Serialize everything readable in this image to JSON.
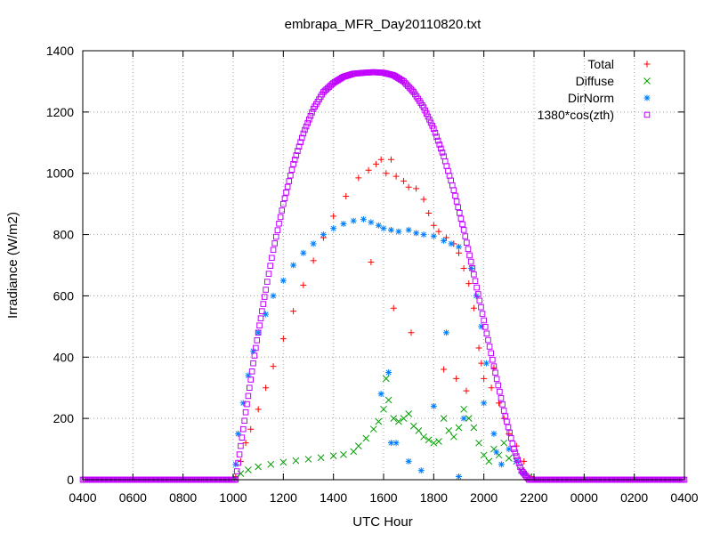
{
  "chart_data": {
    "type": "scatter",
    "title": "embrapa_MFR_Day20110820.txt",
    "xlabel": "UTC Hour",
    "ylabel": "Irradiance (W/m2)",
    "xlim": [
      4,
      28
    ],
    "ylim": [
      0,
      1400
    ],
    "x_ticks": [
      {
        "value": 4,
        "label": "0400"
      },
      {
        "value": 6,
        "label": "0600"
      },
      {
        "value": 8,
        "label": "0800"
      },
      {
        "value": 10,
        "label": "1000"
      },
      {
        "value": 12,
        "label": "1200"
      },
      {
        "value": 14,
        "label": "1400"
      },
      {
        "value": 16,
        "label": "1600"
      },
      {
        "value": 18,
        "label": "1800"
      },
      {
        "value": 20,
        "label": "2000"
      },
      {
        "value": 22,
        "label": "2200"
      },
      {
        "value": 24,
        "label": "0000"
      },
      {
        "value": 26,
        "label": "0200"
      },
      {
        "value": 28,
        "label": "0400"
      }
    ],
    "y_ticks": [
      0,
      200,
      400,
      600,
      800,
      1000,
      1200,
      1400
    ],
    "grid": true,
    "legend_position": "top-right",
    "series": [
      {
        "name": "Total",
        "color": "#ff0000",
        "marker": "plus",
        "points": [
          [
            10.1,
            10
          ],
          [
            10.3,
            60
          ],
          [
            10.5,
            120
          ],
          [
            10.7,
            165
          ],
          [
            11,
            230
          ],
          [
            11.3,
            300
          ],
          [
            11.6,
            370
          ],
          [
            12,
            460
          ],
          [
            12.4,
            550
          ],
          [
            12.8,
            635
          ],
          [
            13.2,
            715
          ],
          [
            13.6,
            790
          ],
          [
            14,
            860
          ],
          [
            14.5,
            925
          ],
          [
            15,
            985
          ],
          [
            15.4,
            1010
          ],
          [
            15.7,
            1030
          ],
          [
            15.9,
            1045
          ],
          [
            16.1,
            1000
          ],
          [
            16.3,
            1045
          ],
          [
            16.5,
            990
          ],
          [
            16.8,
            975
          ],
          [
            17,
            955
          ],
          [
            17.3,
            950
          ],
          [
            17.6,
            915
          ],
          [
            17.8,
            870
          ],
          [
            18,
            830
          ],
          [
            18.2,
            810
          ],
          [
            18.5,
            790
          ],
          [
            18.8,
            770
          ],
          [
            19,
            740
          ],
          [
            19.2,
            690
          ],
          [
            19.4,
            640
          ],
          [
            19.6,
            560
          ],
          [
            19.8,
            430
          ],
          [
            19.9,
            380
          ],
          [
            20,
            330
          ],
          [
            20.3,
            300
          ],
          [
            20.6,
            250
          ],
          [
            20.8,
            200
          ],
          [
            21,
            150
          ],
          [
            21.3,
            110
          ],
          [
            21.6,
            60
          ],
          [
            21.9,
            10
          ],
          [
            15.5,
            710
          ],
          [
            16.4,
            560
          ],
          [
            17.1,
            480
          ],
          [
            18.4,
            360
          ],
          [
            18.9,
            330
          ],
          [
            19.3,
            290
          ],
          [
            20.4,
            365
          ]
        ]
      },
      {
        "name": "Diffuse",
        "color": "#00a000",
        "marker": "cross",
        "points": [
          [
            10.1,
            5
          ],
          [
            10.3,
            20
          ],
          [
            10.6,
            32
          ],
          [
            11,
            42
          ],
          [
            11.5,
            50
          ],
          [
            12,
            57
          ],
          [
            12.5,
            62
          ],
          [
            13,
            67
          ],
          [
            13.5,
            72
          ],
          [
            14,
            78
          ],
          [
            14.4,
            82
          ],
          [
            14.8,
            92
          ],
          [
            15,
            110
          ],
          [
            15.3,
            135
          ],
          [
            15.6,
            165
          ],
          [
            15.8,
            190
          ],
          [
            16,
            230
          ],
          [
            16.1,
            330
          ],
          [
            16.2,
            260
          ],
          [
            16.4,
            200
          ],
          [
            16.6,
            190
          ],
          [
            16.8,
            200
          ],
          [
            17,
            215
          ],
          [
            17.2,
            175
          ],
          [
            17.4,
            160
          ],
          [
            17.6,
            140
          ],
          [
            17.8,
            130
          ],
          [
            18,
            120
          ],
          [
            18.2,
            125
          ],
          [
            18.4,
            200
          ],
          [
            18.6,
            160
          ],
          [
            18.8,
            140
          ],
          [
            19,
            170
          ],
          [
            19.2,
            230
          ],
          [
            19.4,
            200
          ],
          [
            19.6,
            170
          ],
          [
            19.8,
            120
          ],
          [
            20,
            80
          ],
          [
            20.2,
            60
          ],
          [
            20.4,
            100
          ],
          [
            20.6,
            80
          ],
          [
            20.8,
            120
          ],
          [
            21,
            70
          ],
          [
            21.3,
            60
          ],
          [
            21.5,
            30
          ],
          [
            21.8,
            10
          ]
        ]
      },
      {
        "name": "DirNorm",
        "color": "#0080ff",
        "marker": "star",
        "points": [
          [
            10.1,
            50
          ],
          [
            10.2,
            150
          ],
          [
            10.4,
            250
          ],
          [
            10.6,
            340
          ],
          [
            10.8,
            420
          ],
          [
            11,
            480
          ],
          [
            11.3,
            540
          ],
          [
            11.6,
            600
          ],
          [
            12,
            650
          ],
          [
            12.4,
            700
          ],
          [
            12.8,
            740
          ],
          [
            13.2,
            770
          ],
          [
            13.6,
            800
          ],
          [
            14,
            820
          ],
          [
            14.4,
            835
          ],
          [
            14.8,
            845
          ],
          [
            15.2,
            850
          ],
          [
            15.5,
            840
          ],
          [
            15.8,
            830
          ],
          [
            16,
            820
          ],
          [
            16.3,
            815
          ],
          [
            16.6,
            810
          ],
          [
            17,
            815
          ],
          [
            17.3,
            805
          ],
          [
            17.6,
            800
          ],
          [
            18,
            795
          ],
          [
            18.4,
            780
          ],
          [
            18.7,
            770
          ],
          [
            19,
            760
          ],
          [
            19.5,
            690
          ],
          [
            19.7,
            600
          ],
          [
            19.9,
            500
          ],
          [
            20.1,
            380
          ],
          [
            16.2,
            350
          ],
          [
            16.5,
            120
          ],
          [
            17,
            60
          ],
          [
            18,
            240
          ],
          [
            19,
            10
          ],
          [
            19.2,
            200
          ],
          [
            20,
            250
          ],
          [
            20.4,
            150
          ],
          [
            20.7,
            50
          ],
          [
            21,
            100
          ],
          [
            21.3,
            60
          ],
          [
            21.6,
            20
          ],
          [
            15.9,
            280
          ],
          [
            16.3,
            120
          ],
          [
            17.5,
            30
          ],
          [
            18.5,
            480
          ],
          [
            20.5,
            90
          ]
        ]
      },
      {
        "name": "1380*cos(zth)",
        "color": "#c000ff",
        "marker": "square",
        "points": [
          [
            4,
            0
          ],
          [
            6,
            0
          ],
          [
            8,
            0
          ],
          [
            9.9,
            0
          ],
          [
            10.1,
            0
          ],
          [
            10.3,
            110
          ],
          [
            10.5,
            220
          ],
          [
            10.8,
            380
          ],
          [
            11,
            480
          ],
          [
            11.3,
            620
          ],
          [
            11.6,
            750
          ],
          [
            12,
            900
          ],
          [
            12.4,
            1030
          ],
          [
            12.8,
            1130
          ],
          [
            13.2,
            1210
          ],
          [
            13.6,
            1265
          ],
          [
            14,
            1295
          ],
          [
            14.4,
            1315
          ],
          [
            14.8,
            1325
          ],
          [
            15.2,
            1328
          ],
          [
            15.6,
            1330
          ],
          [
            16,
            1328
          ],
          [
            16.4,
            1320
          ],
          [
            16.8,
            1300
          ],
          [
            17.2,
            1265
          ],
          [
            17.6,
            1215
          ],
          [
            18,
            1145
          ],
          [
            18.4,
            1055
          ],
          [
            18.8,
            945
          ],
          [
            19.2,
            815
          ],
          [
            19.6,
            670
          ],
          [
            20,
            520
          ],
          [
            20.4,
            370
          ],
          [
            20.8,
            225
          ],
          [
            21.2,
            100
          ],
          [
            21.5,
            30
          ],
          [
            21.8,
            0
          ],
          [
            22,
            0
          ],
          [
            24,
            0
          ],
          [
            26,
            0
          ],
          [
            28,
            0
          ]
        ]
      }
    ]
  }
}
